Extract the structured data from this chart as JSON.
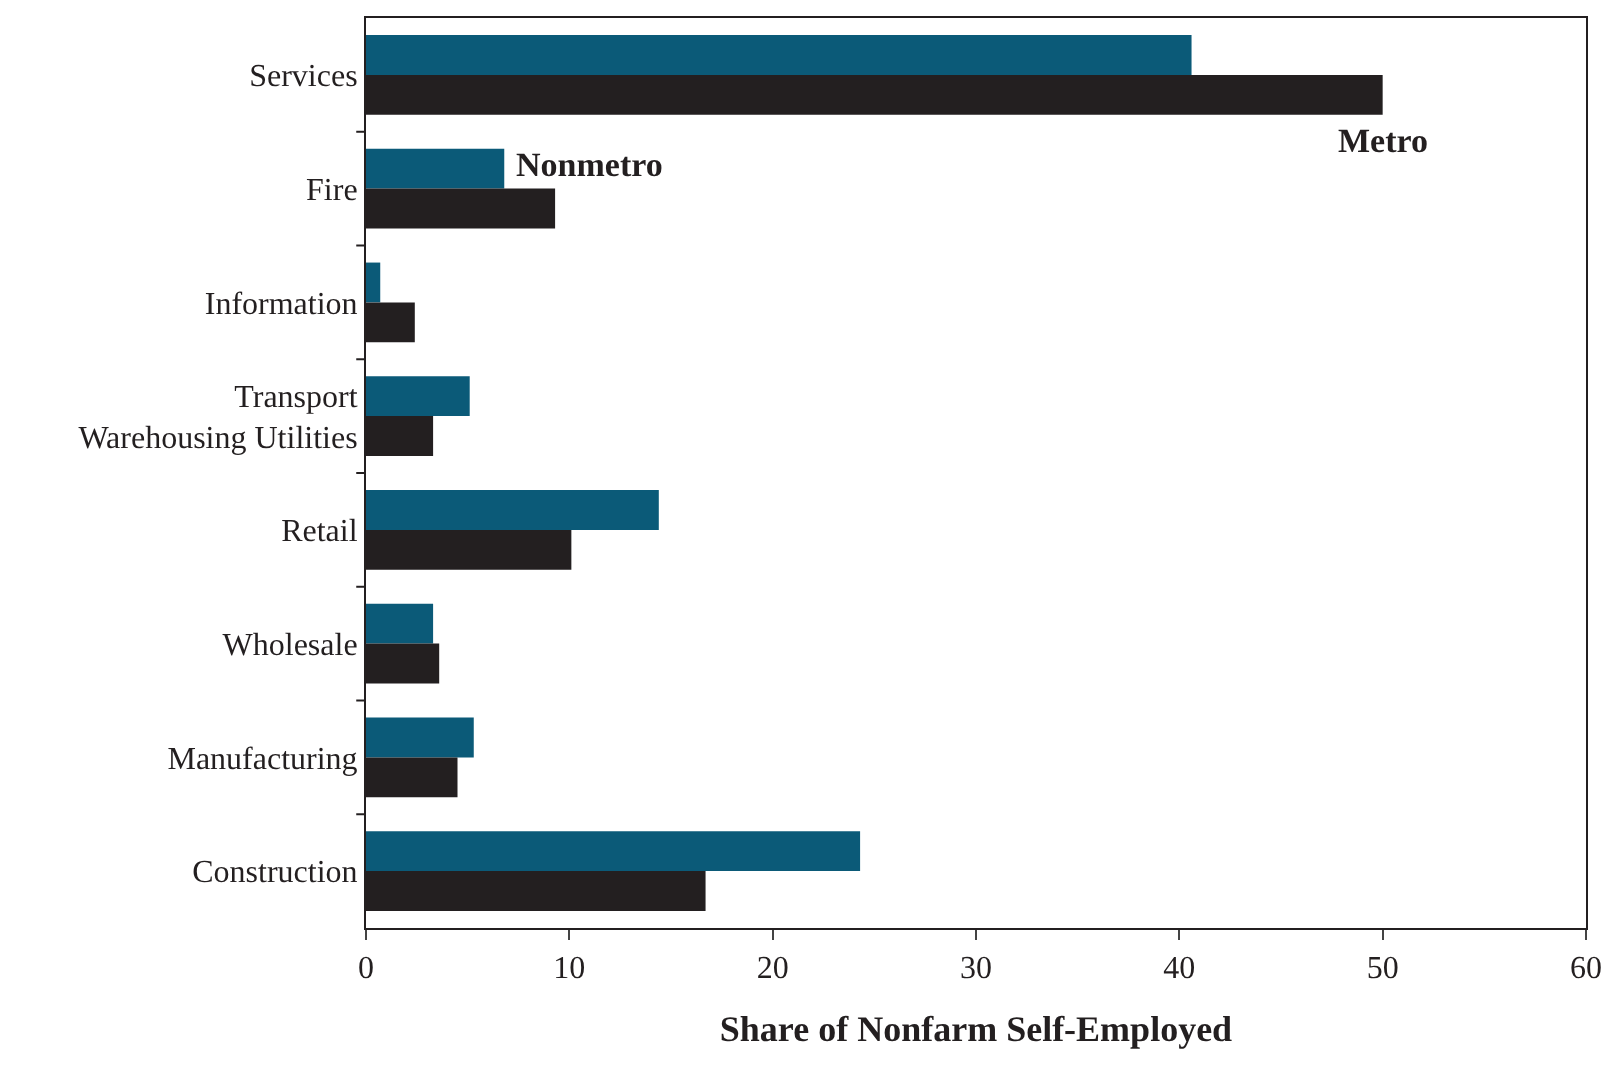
{
  "chart_data": {
    "type": "bar",
    "orientation": "horizontal",
    "xlabel": "Share of Nonfarm Self-Employed",
    "categories": [
      "Services",
      "Fire",
      "Information",
      "Transport\nWarehousing Utilities",
      "Retail",
      "Wholesale",
      "Manufacturing",
      "Construction"
    ],
    "series": [
      {
        "name": "Nonmetro",
        "color": "#0b5a78",
        "values": [
          40.6,
          6.8,
          0.7,
          5.1,
          14.4,
          3.3,
          5.3,
          24.3
        ]
      },
      {
        "name": "Metro",
        "color": "#231f20",
        "values": [
          50.0,
          9.3,
          2.4,
          3.3,
          10.1,
          3.6,
          4.5,
          16.7
        ]
      }
    ],
    "xlim": [
      0,
      60
    ],
    "xticks": [
      0,
      10,
      20,
      30,
      40,
      50,
      60
    ],
    "legend": false
  }
}
